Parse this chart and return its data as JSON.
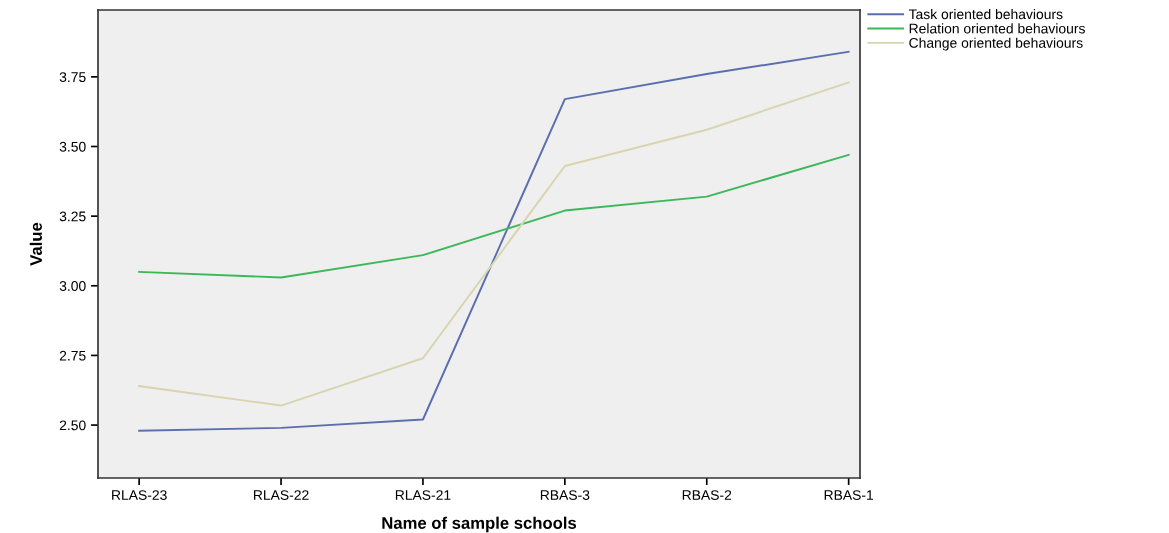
{
  "chart_data": {
    "type": "line",
    "xlabel": "Name of sample schools",
    "ylabel": "Value",
    "categories": [
      "RLAS-23",
      "RLAS-22",
      "RLAS-21",
      "RBAS-3",
      "RBAS-2",
      "RBAS-1"
    ],
    "series": [
      {
        "name": "Task oriented behaviours",
        "color": "#5b6fae",
        "values": [
          2.48,
          2.49,
          2.52,
          3.67,
          3.76,
          3.84
        ]
      },
      {
        "name": "Relation oriented behaviours",
        "color": "#3cb85a",
        "values": [
          3.05,
          3.03,
          3.11,
          3.27,
          3.32,
          3.47
        ]
      },
      {
        "name": "Change oriented behaviours",
        "color": "#d9d4b0",
        "values": [
          2.64,
          2.57,
          2.74,
          3.43,
          3.56,
          3.73
        ]
      }
    ],
    "ylim": [
      2.31,
      3.99
    ],
    "yticks": [
      {
        "value": 2.5,
        "label": "2.50"
      },
      {
        "value": 2.75,
        "label": "2.75"
      },
      {
        "value": 3,
        "label": "3.00"
      },
      {
        "value": 3.25,
        "label": "3.25"
      },
      {
        "value": 3.5,
        "label": "3.50"
      },
      {
        "value": 3.75,
        "label": "3.75"
      }
    ],
    "legend": "top right",
    "grid": false,
    "marker": "none",
    "line_style": "solid"
  }
}
